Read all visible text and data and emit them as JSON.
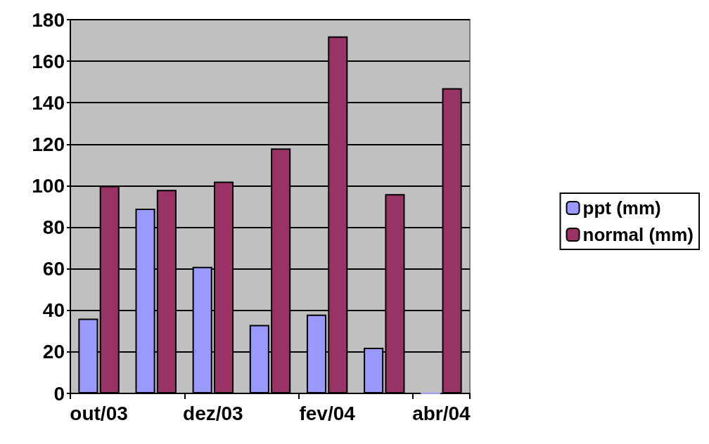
{
  "chart_data": {
    "type": "bar",
    "categories": [
      "out/03",
      null,
      "dez/03",
      null,
      "fev/04",
      null,
      "abr/04"
    ],
    "series": [
      {
        "name": "ppt (mm)",
        "color": "#9999ff",
        "values": [
          36,
          89,
          61,
          33,
          38,
          22,
          0
        ]
      },
      {
        "name": "normal (mm)",
        "color": "#993366",
        "values": [
          100,
          98,
          102,
          118,
          172,
          96,
          147
        ]
      }
    ],
    "ylim": [
      0,
      180
    ],
    "yticks": [
      0,
      20,
      40,
      60,
      80,
      100,
      120,
      140,
      160,
      180
    ],
    "grid": "y",
    "legend": "right"
  }
}
